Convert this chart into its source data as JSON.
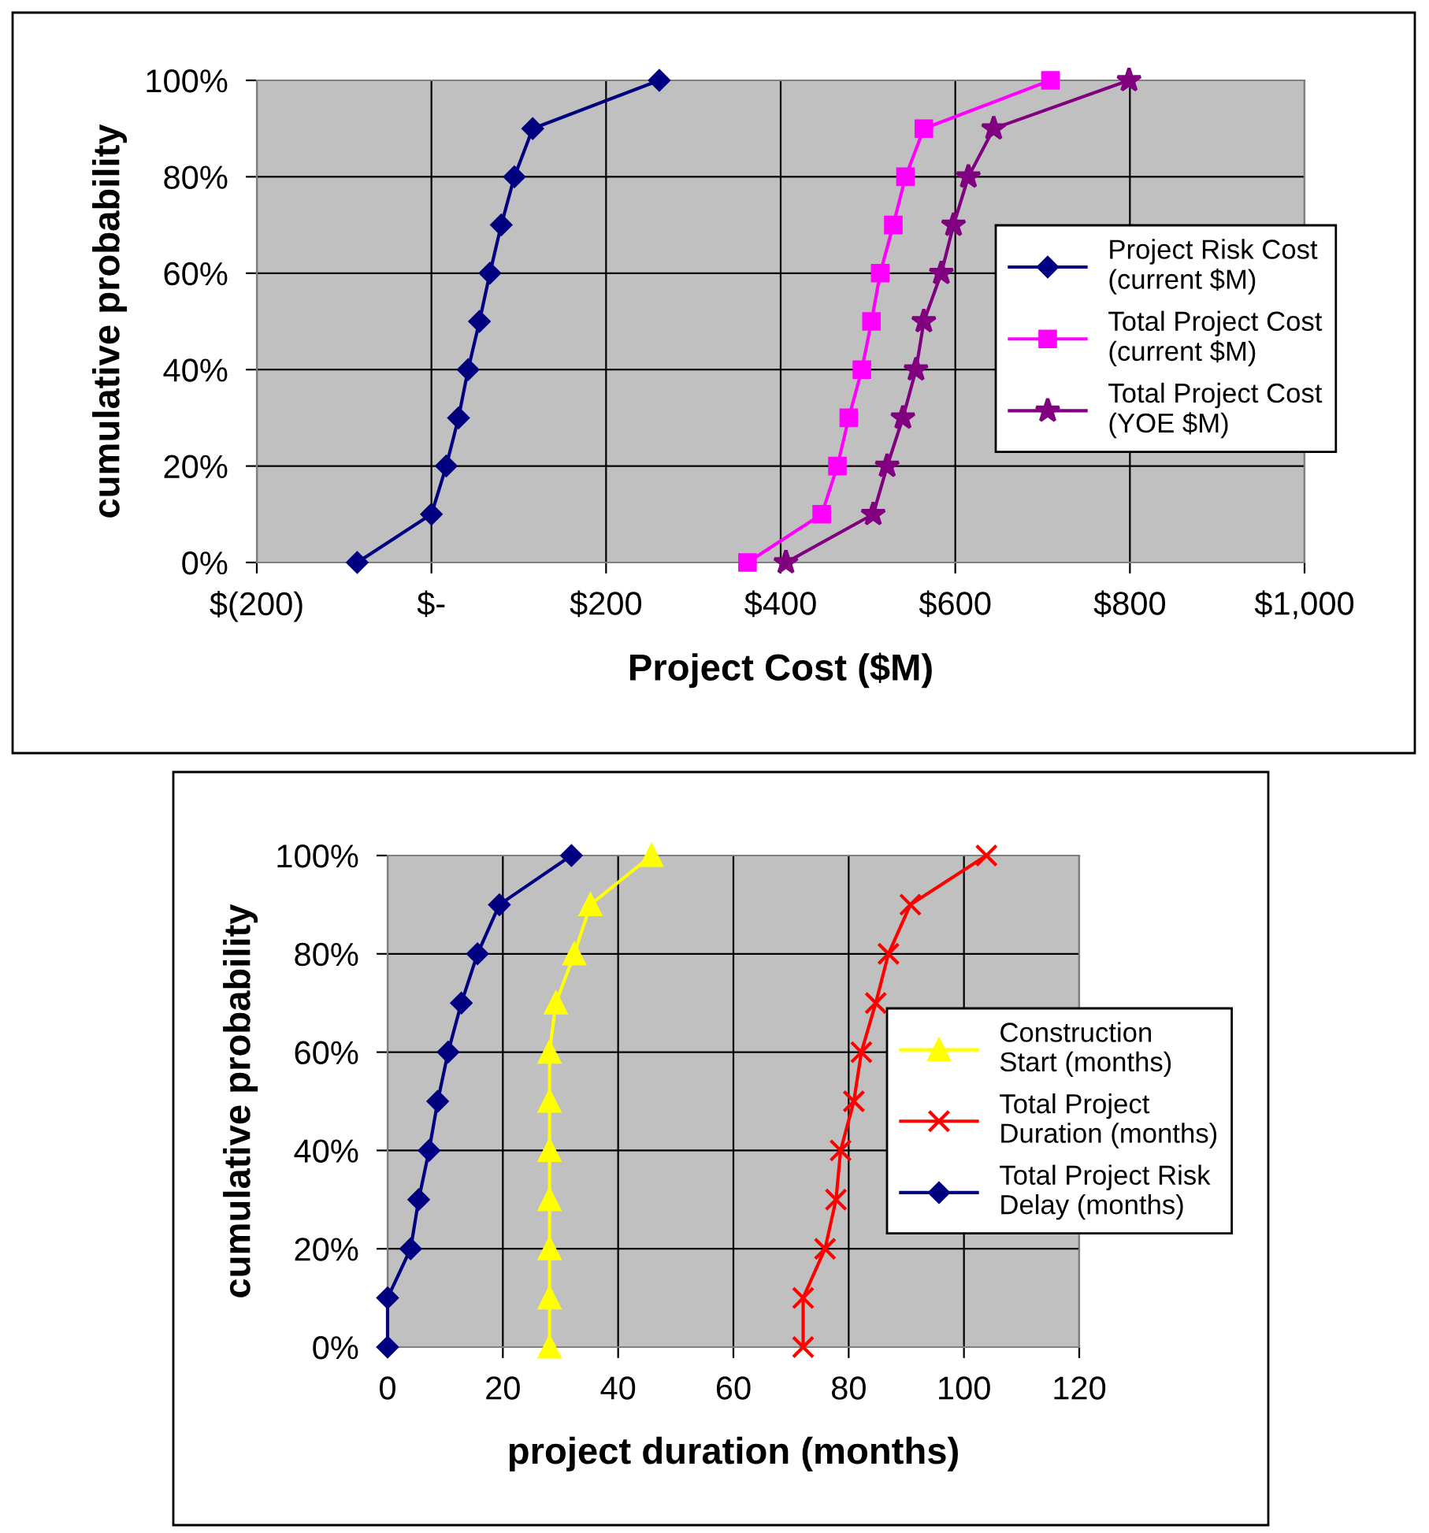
{
  "chart_data": [
    {
      "type": "line",
      "xlabel": "Project Cost ($M)",
      "ylabel": "cumulative probability",
      "series": [
        {
          "name": "Project Risk Cost\n(current $M)",
          "color": "#000080",
          "marker": "diamond",
          "x": [
            -85,
            0,
            17,
            31,
            42,
            55,
            67,
            80,
            95,
            116,
            261
          ],
          "values": [
            0,
            10,
            20,
            30,
            40,
            50,
            60,
            70,
            80,
            90,
            100
          ]
        },
        {
          "name": "Total Project Cost\n(current $M)",
          "color": "#ff00ff",
          "marker": "square",
          "x": [
            362,
            447,
            465,
            478,
            493,
            504,
            514,
            529,
            543,
            564,
            709
          ],
          "values": [
            0,
            10,
            20,
            30,
            40,
            50,
            60,
            70,
            80,
            90,
            100
          ]
        },
        {
          "name": "Total Project Cost\n(YOE $M)",
          "color": "#800080",
          "marker": "star",
          "x": [
            406,
            506,
            522,
            540,
            555,
            564,
            584,
            598,
            615,
            644,
            799
          ],
          "values": [
            0,
            10,
            20,
            30,
            40,
            50,
            60,
            70,
            80,
            90,
            100
          ]
        }
      ],
      "xlim": [
        -200,
        1000
      ],
      "xticks": [
        {
          "value": -200,
          "label": "$(200)"
        },
        {
          "value": 0,
          "label": "$-"
        },
        {
          "value": 200,
          "label": "$200"
        },
        {
          "value": 400,
          "label": "$400"
        },
        {
          "value": 600,
          "label": "$600"
        },
        {
          "value": 800,
          "label": "$800"
        },
        {
          "value": 1000,
          "label": "$1,000"
        }
      ],
      "ylim": [
        0,
        100
      ],
      "yticks": [
        {
          "value": 0,
          "label": "0%"
        },
        {
          "value": 20,
          "label": "20%"
        },
        {
          "value": 40,
          "label": "40%"
        },
        {
          "value": 60,
          "label": "60%"
        },
        {
          "value": 80,
          "label": "80%"
        },
        {
          "value": 100,
          "label": "100%"
        }
      ],
      "grid": true,
      "legend": "right"
    },
    {
      "type": "line",
      "xlabel": "project duration (months)",
      "ylabel": "cumulative probability",
      "series": [
        {
          "name": "Construction\nStart (months)",
          "color": "#ffff00",
          "marker": "triangle",
          "x": [
            28.1,
            28.1,
            28.1,
            28.1,
            28.1,
            28.1,
            28.1,
            29.2,
            32.4,
            35.2,
            45.8
          ],
          "values": [
            0,
            10,
            20,
            30,
            40,
            50,
            60,
            70,
            80,
            90,
            100
          ]
        },
        {
          "name": "Total Project\nDuration (months)",
          "color": "#ff0000",
          "marker": "cross",
          "x": [
            72.1,
            72.1,
            75.9,
            77.8,
            78.6,
            80.9,
            82.2,
            84.7,
            86.9,
            90.7,
            103.9
          ],
          "values": [
            0,
            10,
            20,
            30,
            40,
            50,
            60,
            70,
            80,
            90,
            100
          ]
        },
        {
          "name": "Total Project Risk\nDelay (months)",
          "color": "#000080",
          "marker": "diamond",
          "x": [
            0,
            0,
            4,
            5.4,
            7.2,
            8.7,
            10.5,
            12.8,
            15.6,
            19.4,
            31.9
          ],
          "values": [
            0,
            10,
            20,
            30,
            40,
            50,
            60,
            70,
            80,
            90,
            100
          ]
        }
      ],
      "xlim": [
        0,
        120
      ],
      "xticks": [
        0,
        20,
        40,
        60,
        80,
        100,
        120
      ],
      "ylim": [
        0,
        100
      ],
      "yticks": [
        {
          "value": 0,
          "label": "0%"
        },
        {
          "value": 20,
          "label": "20%"
        },
        {
          "value": 40,
          "label": "40%"
        },
        {
          "value": 60,
          "label": "60%"
        },
        {
          "value": 80,
          "label": "80%"
        },
        {
          "value": 100,
          "label": "100%"
        }
      ],
      "grid": true,
      "legend": "right"
    }
  ]
}
